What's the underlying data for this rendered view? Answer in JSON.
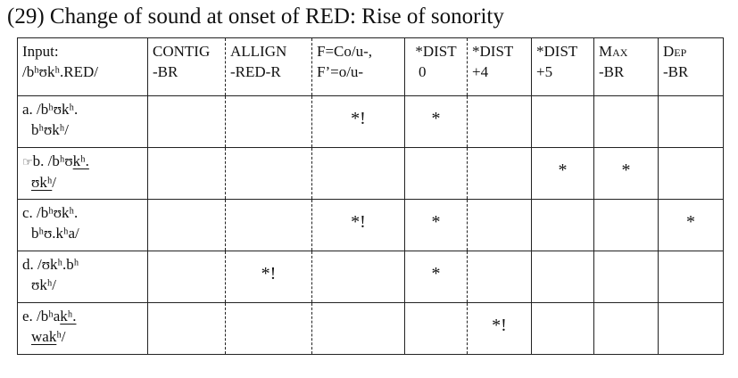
{
  "title": "(29) Change of sound at onset of RED: Rise of sonority",
  "header": {
    "input": [
      "Input:",
      "/bʰʊkʰ.RED/"
    ],
    "columns": [
      [
        "CONTIG",
        "-BR"
      ],
      [
        "ALLIGN",
        "-RED-R"
      ],
      [
        "F=Co/u-,",
        "F’=o/u-"
      ],
      [
        "*DIST",
        "0"
      ],
      [
        "*DIST",
        "+4"
      ],
      [
        "*DIST",
        "+5"
      ],
      [
        "Max",
        "-BR"
      ],
      [
        "Dep",
        "-BR"
      ]
    ]
  },
  "rows": [
    {
      "line1": "a. /bʰʊkʰ.",
      "line2": "bʰʊkʰ/",
      "marks": [
        "",
        "",
        "*!",
        "*",
        "",
        "",
        "",
        ""
      ]
    },
    {
      "pointer": "☞",
      "line1": "b. /bʰʊ",
      "line1u": "kʰ.",
      "line2u": "ʊkʰ",
      "line2": "/",
      "marks": [
        "",
        "",
        "",
        "",
        "",
        "*",
        "*",
        ""
      ]
    },
    {
      "line1": "c. /bʰʊkʰ.",
      "line2": "bʰʊ.kʰa/",
      "marks": [
        "",
        "",
        "*!",
        "*",
        "",
        "",
        "",
        "*"
      ]
    },
    {
      "line1": "d. /ʊkʰ.bʰ",
      "line2": "ʊkʰ/",
      "marks": [
        "",
        "*!",
        "",
        "*",
        "",
        "",
        "",
        ""
      ]
    },
    {
      "line1": "e. /bʰa",
      "line1u": "kʰ.",
      "line2u": "wak",
      "line2": "ʰ/",
      "marks": [
        "",
        "",
        "",
        "",
        "*!",
        "",
        "",
        ""
      ]
    }
  ]
}
